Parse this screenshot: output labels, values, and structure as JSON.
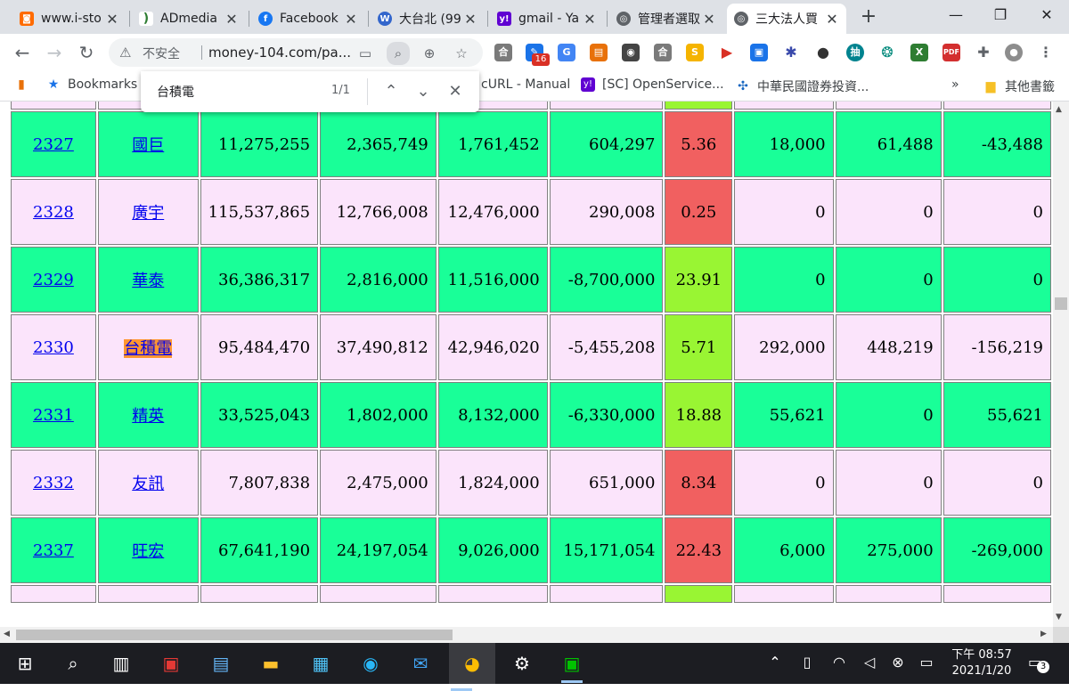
{
  "browser": {
    "tabs": [
      {
        "title": "www.i-sto",
        "favicon": "i-stock-icon",
        "color": "#ff6b00"
      },
      {
        "title": "ADmedia",
        "favicon": "admedia-icon",
        "color": "#2e7d32"
      },
      {
        "title": "Facebook",
        "favicon": "facebook-icon",
        "color": "#1877f2"
      },
      {
        "title": "大台北 (99",
        "favicon": "wiki-icon",
        "color": "#3366cc"
      },
      {
        "title": "gmail - Ya",
        "favicon": "yahoo-icon",
        "color": "#6001d2"
      },
      {
        "title": "管理者選取",
        "favicon": "globe-icon",
        "color": "#5f6368"
      },
      {
        "title": "三大法人買",
        "favicon": "globe-icon",
        "color": "#5f6368",
        "active": true
      }
    ],
    "new_tab": "+",
    "window": {
      "minimize": "—",
      "restore": "❐",
      "close": "✕"
    },
    "nav": {
      "back": "←",
      "forward": "→",
      "reload": "↻"
    },
    "omnibox": {
      "security_label": "不安全",
      "url": "money-104.com/pa..."
    },
    "extensions_badge": "16",
    "bookmarks": [
      {
        "label": "Bookmarks",
        "icon": "star-icon"
      },
      {
        "label": "cURL - Manual",
        "icon": "curl-icon"
      },
      {
        "label": "[SC] OpenService...",
        "icon": "yahoo-icon"
      },
      {
        "label": "中華民國證券投資...",
        "icon": "securities-icon"
      }
    ],
    "bookmarks_overflow": "»",
    "other_bookmarks": "其他書籤"
  },
  "find_bar": {
    "query": "台積電",
    "count": "1/1"
  },
  "table": {
    "rows": [
      {
        "stub": true,
        "style": "pink",
        "pct_color": "green"
      },
      {
        "code": "2327",
        "name": "國巨",
        "c1": "11,275,255",
        "c2": "2,365,749",
        "c3": "1,761,452",
        "c4": "604,297",
        "pct": "5.36",
        "pct_color": "red",
        "c5": "18,000",
        "c6": "61,488",
        "c7": "-43,488",
        "style": "green"
      },
      {
        "code": "2328",
        "name": "廣宇",
        "c1": "115,537,865",
        "c2": "12,766,008",
        "c3": "12,476,000",
        "c4": "290,008",
        "pct": "0.25",
        "pct_color": "red",
        "c5": "0",
        "c6": "0",
        "c7": "0",
        "style": "pink"
      },
      {
        "code": "2329",
        "name": "華泰",
        "c1": "36,386,317",
        "c2": "2,816,000",
        "c3": "11,516,000",
        "c4": "-8,700,000",
        "pct": "23.91",
        "pct_color": "green",
        "c5": "0",
        "c6": "0",
        "c7": "0",
        "style": "green"
      },
      {
        "code": "2330",
        "name": "台積電",
        "c1": "95,484,470",
        "c2": "37,490,812",
        "c3": "42,946,020",
        "c4": "-5,455,208",
        "pct": "5.71",
        "pct_color": "green",
        "c5": "292,000",
        "c6": "448,219",
        "c7": "-156,219",
        "style": "pink",
        "highlight": true
      },
      {
        "code": "2331",
        "name": "精英",
        "c1": "33,525,043",
        "c2": "1,802,000",
        "c3": "8,132,000",
        "c4": "-6,330,000",
        "pct": "18.88",
        "pct_color": "green",
        "c5": "55,621",
        "c6": "0",
        "c7": "55,621",
        "style": "green"
      },
      {
        "code": "2332",
        "name": "友訊",
        "c1": "7,807,838",
        "c2": "2,475,000",
        "c3": "1,824,000",
        "c4": "651,000",
        "pct": "8.34",
        "pct_color": "red",
        "c5": "0",
        "c6": "0",
        "c7": "0",
        "style": "pink"
      },
      {
        "code": "2337",
        "name": "旺宏",
        "c1": "67,641,190",
        "c2": "24,197,054",
        "c3": "9,026,000",
        "c4": "15,171,054",
        "pct": "22.43",
        "pct_color": "red",
        "c5": "6,000",
        "c6": "275,000",
        "c7": "-269,000",
        "style": "green"
      },
      {
        "stub": true,
        "style": "pink",
        "pct_color": "green"
      }
    ]
  },
  "taskbar": {
    "clock_period_time": "下午 08:57",
    "clock_date": "2021/1/20",
    "notification_count": "3"
  },
  "colors": {
    "row_green": "#19ff98",
    "row_pink": "#fbe4fb",
    "pct_red": "#f16060",
    "pct_green": "#99f533",
    "find_highlight": "#ff9632"
  }
}
